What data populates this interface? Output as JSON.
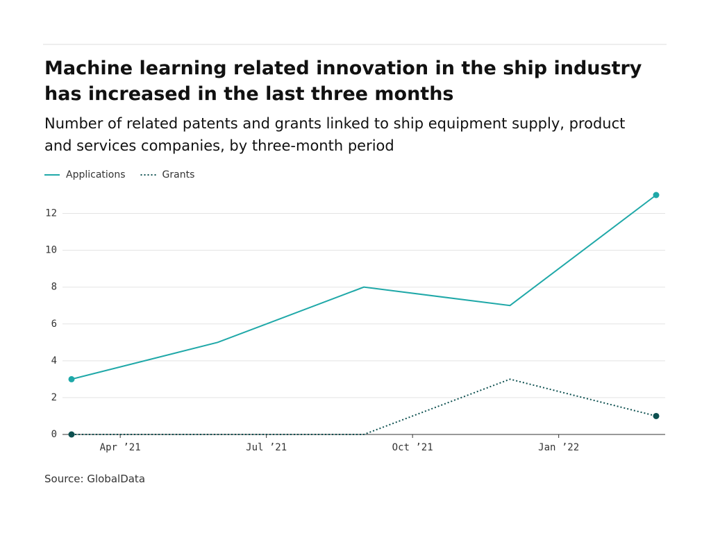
{
  "chart_data": {
    "type": "line",
    "title": "Machine learning related innovation in the ship industry has increased in the last three months",
    "subtitle": "Number of related patents and grants linked to ship equipment supply, product and services companies, by three-month period",
    "source": "Source: GlobalData",
    "x": [
      "2021-03",
      "2021-06",
      "2021-09",
      "2021-12",
      "2022-03"
    ],
    "series": [
      {
        "name": "Applications",
        "color": "#1fa8a8",
        "style": "solid",
        "values": [
          3,
          5,
          8,
          7,
          13
        ]
      },
      {
        "name": "Grants",
        "color": "#0d5050",
        "style": "dotted",
        "values": [
          0,
          0,
          0,
          3,
          1
        ]
      }
    ],
    "xlim": [
      "2021-03",
      "2022-03"
    ],
    "xticks": [
      {
        "value": "2021-04",
        "label": "Apr ’21"
      },
      {
        "value": "2021-07",
        "label": "Jul ’21"
      },
      {
        "value": "2021-10",
        "label": "Oct ’21"
      },
      {
        "value": "2022-01",
        "label": "Jan ’22"
      }
    ],
    "ylim": [
      0,
      13
    ],
    "yticks": [
      0,
      2,
      4,
      6,
      8,
      10,
      12
    ],
    "grid": true,
    "legend": "top-left"
  }
}
